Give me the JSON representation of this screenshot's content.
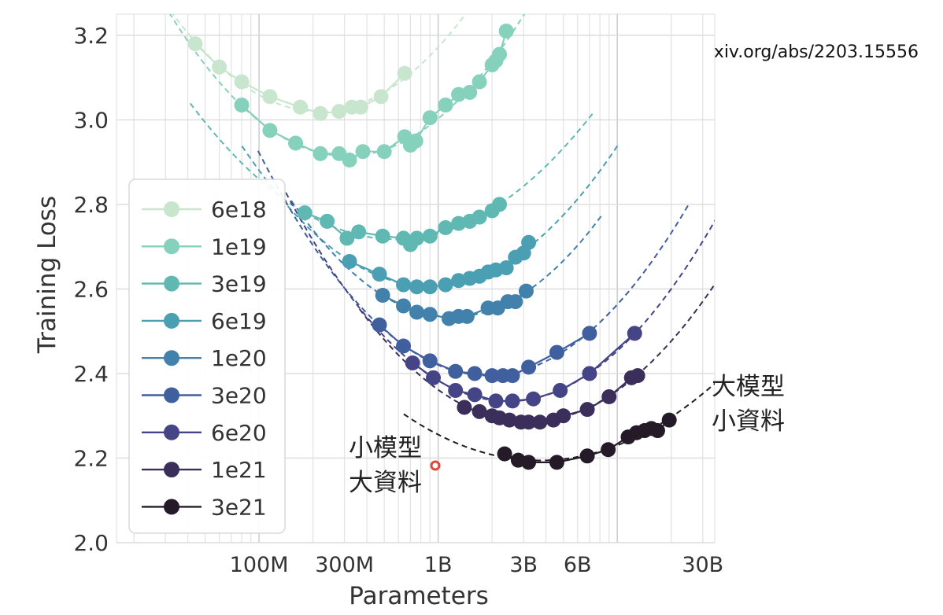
{
  "source_url": "https://arxiv.org/abs/2203.15556",
  "annotations": {
    "small_model_line1": "小模型",
    "small_model_line2": "大資料",
    "large_model_line1": "大模型",
    "large_model_line2": "小資料"
  },
  "chart_data": {
    "type": "scatter",
    "xlabel": "Parameters",
    "ylabel": "Training Loss",
    "x_scale": "log",
    "xlim": [
      16000000,
      35000000000
    ],
    "ylim": [
      2.0,
      3.25
    ],
    "yticks": [
      2.0,
      2.2,
      2.4,
      2.6,
      2.8,
      3.0,
      3.2
    ],
    "xticks": [
      {
        "value": 100000000,
        "label": "100M"
      },
      {
        "value": 300000000,
        "label": "300M"
      },
      {
        "value": 1000000000,
        "label": "1B"
      },
      {
        "value": 3000000000,
        "label": "3B"
      },
      {
        "value": 6000000000,
        "label": "6B"
      },
      {
        "value": 30000000000,
        "label": "30B"
      }
    ],
    "grid": true,
    "legend_position": "left",
    "series": [
      {
        "name": "6e18",
        "color": "#c7e6cd",
        "points": [
          [
            44000000,
            3.18
          ],
          [
            60000000,
            3.125
          ],
          [
            80000000,
            3.09
          ],
          [
            115000000,
            3.055
          ],
          [
            170000000,
            3.03
          ],
          [
            220000000,
            3.015
          ],
          [
            280000000,
            3.02
          ],
          [
            330000000,
            3.03
          ],
          [
            370000000,
            3.03
          ],
          [
            480000000,
            3.055
          ],
          [
            650000000,
            3.11
          ]
        ]
      },
      {
        "name": "1e19",
        "color": "#86d1bc",
        "points": [
          [
            80000000,
            3.035
          ],
          [
            115000000,
            2.975
          ],
          [
            160000000,
            2.945
          ],
          [
            220000000,
            2.92
          ],
          [
            280000000,
            2.92
          ],
          [
            320000000,
            2.905
          ],
          [
            380000000,
            2.925
          ],
          [
            500000000,
            2.925
          ],
          [
            650000000,
            2.96
          ],
          [
            700000000,
            2.94
          ],
          [
            750000000,
            2.95
          ],
          [
            900000000,
            3.005
          ],
          [
            1100000000,
            3.035
          ],
          [
            1300000000,
            3.06
          ],
          [
            1500000000,
            3.065
          ],
          [
            1700000000,
            3.09
          ],
          [
            2000000000,
            3.13
          ],
          [
            2100000000,
            3.14
          ],
          [
            2200000000,
            3.155
          ],
          [
            2400000000,
            3.21
          ]
        ]
      },
      {
        "name": "3e19",
        "color": "#5fb8b2",
        "points": [
          [
            180000000,
            2.78
          ],
          [
            240000000,
            2.76
          ],
          [
            310000000,
            2.72
          ],
          [
            360000000,
            2.735
          ],
          [
            490000000,
            2.725
          ],
          [
            640000000,
            2.72
          ],
          [
            700000000,
            2.705
          ],
          [
            760000000,
            2.72
          ],
          [
            900000000,
            2.725
          ],
          [
            1100000000,
            2.745
          ],
          [
            1300000000,
            2.755
          ],
          [
            1500000000,
            2.76
          ],
          [
            1700000000,
            2.77
          ],
          [
            2000000000,
            2.785
          ],
          [
            2200000000,
            2.8
          ]
        ]
      },
      {
        "name": "6e19",
        "color": "#4a9fb3",
        "points": [
          [
            320000000,
            2.665
          ],
          [
            470000000,
            2.635
          ],
          [
            640000000,
            2.61
          ],
          [
            760000000,
            2.605
          ],
          [
            900000000,
            2.605
          ],
          [
            1100000000,
            2.61
          ],
          [
            1300000000,
            2.62
          ],
          [
            1500000000,
            2.625
          ],
          [
            1700000000,
            2.63
          ],
          [
            1900000000,
            2.64
          ],
          [
            2100000000,
            2.645
          ],
          [
            2400000000,
            2.65
          ],
          [
            2700000000,
            2.675
          ],
          [
            3000000000,
            2.685
          ],
          [
            3200000000,
            2.71
          ]
        ]
      },
      {
        "name": "1e20",
        "color": "#4181ab",
        "points": [
          [
            490000000,
            2.585
          ],
          [
            640000000,
            2.56
          ],
          [
            760000000,
            2.545
          ],
          [
            900000000,
            2.54
          ],
          [
            1150000000,
            2.53
          ],
          [
            1300000000,
            2.535
          ],
          [
            1450000000,
            2.535
          ],
          [
            1900000000,
            2.555
          ],
          [
            2150000000,
            2.555
          ],
          [
            2450000000,
            2.57
          ],
          [
            2700000000,
            2.57
          ],
          [
            3100000000,
            2.595
          ]
        ]
      },
      {
        "name": "3e20",
        "color": "#3f5f9e",
        "points": [
          [
            470000000,
            2.515
          ],
          [
            640000000,
            2.465
          ],
          [
            900000000,
            2.43
          ],
          [
            1250000000,
            2.405
          ],
          [
            1600000000,
            2.4
          ],
          [
            2000000000,
            2.395
          ],
          [
            2300000000,
            2.395
          ],
          [
            2600000000,
            2.395
          ],
          [
            3200000000,
            2.415
          ],
          [
            4600000000,
            2.45
          ],
          [
            7000000000,
            2.495
          ]
        ]
      },
      {
        "name": "6e20",
        "color": "#454487",
        "points": [
          [
            720000000,
            2.425
          ],
          [
            940000000,
            2.39
          ],
          [
            1250000000,
            2.36
          ],
          [
            1600000000,
            2.35
          ],
          [
            2100000000,
            2.335
          ],
          [
            2600000000,
            2.335
          ],
          [
            3400000000,
            2.34
          ],
          [
            4800000000,
            2.36
          ],
          [
            7000000000,
            2.4
          ],
          [
            12500000000,
            2.495
          ]
        ]
      },
      {
        "name": "1e21",
        "color": "#3b2e5a",
        "points": [
          [
            1400000000,
            2.32
          ],
          [
            1700000000,
            2.31
          ],
          [
            2000000000,
            2.3
          ],
          [
            2200000000,
            2.295
          ],
          [
            2500000000,
            2.29
          ],
          [
            2900000000,
            2.285
          ],
          [
            3200000000,
            2.285
          ],
          [
            3700000000,
            2.285
          ],
          [
            4400000000,
            2.29
          ],
          [
            5000000000,
            2.3
          ],
          [
            6800000000,
            2.315
          ],
          [
            9000000000,
            2.345
          ],
          [
            12000000000,
            2.39
          ],
          [
            13000000000,
            2.395
          ]
        ]
      },
      {
        "name": "3e21",
        "color": "#241a28",
        "points": [
          [
            2350000000,
            2.21
          ],
          [
            2800000000,
            2.195
          ],
          [
            3200000000,
            2.19
          ],
          [
            4600000000,
            2.19
          ],
          [
            6800000000,
            2.205
          ],
          [
            8900000000,
            2.22
          ],
          [
            11500000000,
            2.25
          ],
          [
            12800000000,
            2.26
          ],
          [
            14200000000,
            2.265
          ],
          [
            15500000000,
            2.27
          ],
          [
            16800000000,
            2.265
          ],
          [
            19500000000,
            2.29
          ]
        ]
      }
    ]
  }
}
